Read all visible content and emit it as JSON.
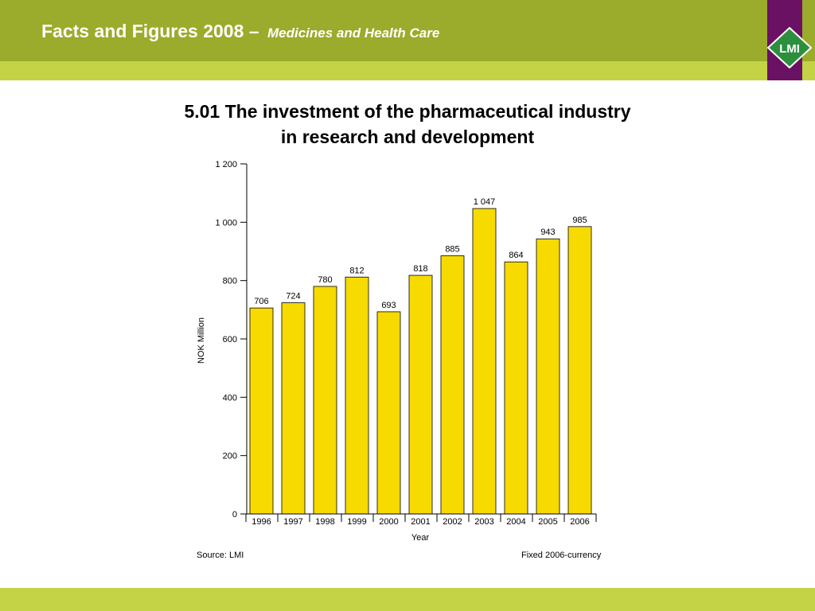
{
  "header": {
    "title": "Facts and Figures 2008 –",
    "subtitle": "Medicines and Health Care",
    "logo_text": "LMI"
  },
  "chart_title": {
    "line1": "5.01 The investment of the pharmaceutical industry",
    "line2": "in research and development"
  },
  "chart_data": {
    "type": "bar",
    "categories": [
      "1996",
      "1997",
      "1998",
      "1999",
      "2000",
      "2001",
      "2002",
      "2003",
      "2004",
      "2005",
      "2006"
    ],
    "values": [
      706,
      724,
      780,
      812,
      693,
      818,
      885,
      1047,
      864,
      943,
      985
    ],
    "value_labels": [
      "706",
      "724",
      "780",
      "812",
      "693",
      "818",
      "885",
      "1 047",
      "864",
      "943",
      "985"
    ],
    "xlabel": "Year",
    "ylabel": "NOK Million",
    "ylim": [
      0,
      1200
    ],
    "yticks": [
      0,
      200,
      400,
      600,
      800,
      1000,
      1200
    ],
    "ytick_labels": [
      "0",
      "200",
      "400",
      "600",
      "800",
      "1 000",
      "1 200"
    ],
    "grid": false,
    "bar_color": "#f7da00"
  },
  "notes": {
    "source": "Source: LMI",
    "currency": "Fixed 2006-currency"
  },
  "colors": {
    "header_green": "#9bab2b",
    "light_green": "#c4d245",
    "purple": "#6a1163",
    "logo_green": "#2d8f3e"
  }
}
